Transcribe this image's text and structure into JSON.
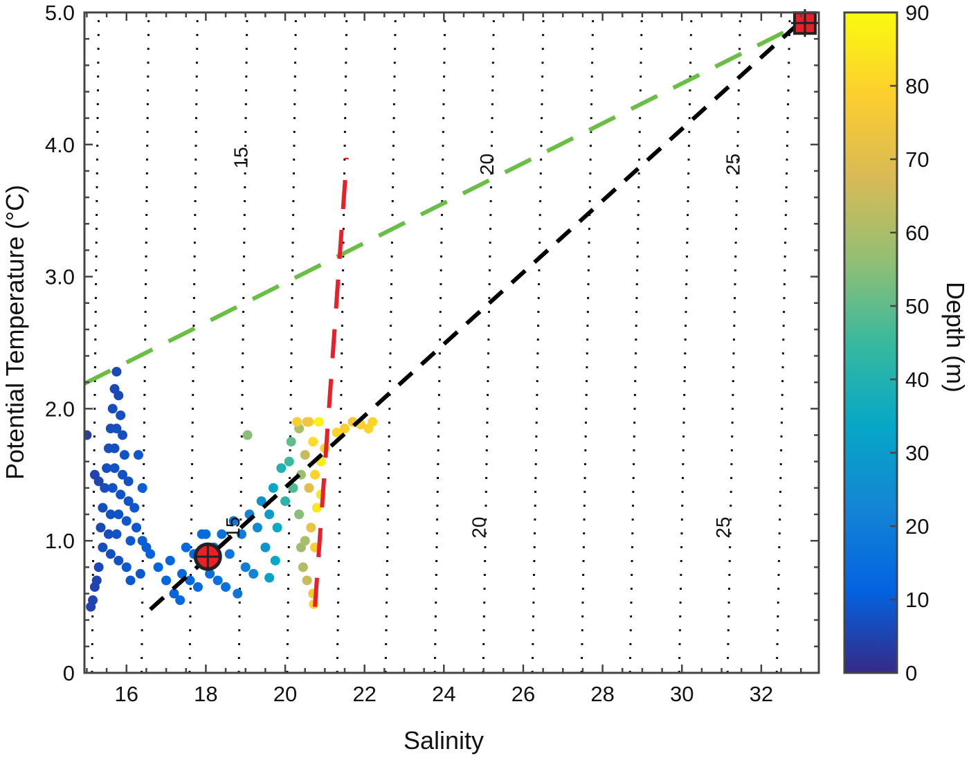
{
  "chart_data": {
    "type": "scatter",
    "xlabel": "Salinity",
    "ylabel": "Potential Temperature (°C)",
    "xlim": [
      14.94,
      33.45
    ],
    "ylim": [
      0,
      5
    ],
    "x_ticks": [
      16,
      18,
      20,
      22,
      24,
      26,
      28,
      30,
      32
    ],
    "y_ticks": [
      {
        "v": 0,
        "label": "0"
      },
      {
        "v": 1,
        "label": "1.0"
      },
      {
        "v": 2,
        "label": "2.0"
      },
      {
        "v": 3,
        "label": "3.0"
      },
      {
        "v": 4,
        "label": "4.0"
      },
      {
        "v": 5,
        "label": "5.0"
      }
    ],
    "colorbar": {
      "label": "Depth (m)",
      "range": [
        0,
        90
      ],
      "ticks": [
        0,
        10,
        20,
        30,
        40,
        50,
        60,
        70,
        80,
        90
      ],
      "colormap": [
        "#352A87",
        "#0363E1",
        "#1485D4",
        "#06A7C6",
        "#38B99E",
        "#92BF73",
        "#D9BA56",
        "#FCCE2E",
        "#F9FB0E"
      ]
    },
    "density_contours": [
      {
        "s_bottom": 15.13,
        "s_top": 15.3
      },
      {
        "s_bottom": 16.38,
        "s_top": 16.56
      },
      {
        "s_bottom": 17.59,
        "s_top": 17.79
      },
      {
        "s_bottom": 18.83,
        "s_top": 19.04
      },
      {
        "s_bottom": 20.05,
        "s_top": 20.27
      },
      {
        "s_bottom": 21.31,
        "s_top": 21.55
      },
      {
        "s_bottom": 22.53,
        "s_top": 22.78
      },
      {
        "s_bottom": 23.77,
        "s_top": 24.03
      },
      {
        "s_bottom": 24.99,
        "s_top": 25.26
      },
      {
        "s_bottom": 26.23,
        "s_top": 26.51
      },
      {
        "s_bottom": 27.47,
        "s_top": 27.76
      },
      {
        "s_bottom": 28.69,
        "s_top": 28.99
      },
      {
        "s_bottom": 29.93,
        "s_top": 30.24
      },
      {
        "s_bottom": 31.15,
        "s_top": 31.47
      },
      {
        "s_bottom": 32.39,
        "s_top": 32.72
      }
    ],
    "contour_labels": [
      {
        "text": "15",
        "s": 19.05,
        "t": 3.9
      },
      {
        "text": "20",
        "s": 25.25,
        "t": 3.85
      },
      {
        "text": "25",
        "s": 31.45,
        "t": 3.85
      },
      {
        "text": "15",
        "s": 18.85,
        "t": 1.1
      },
      {
        "text": "20",
        "s": 25.05,
        "t": 1.1
      },
      {
        "text": "25",
        "s": 31.2,
        "t": 1.1
      }
    ],
    "lines": [
      {
        "color": "#6ABD45",
        "dash": "42 26",
        "points": [
          [
            14.94,
            2.19
          ],
          [
            33.1,
            4.93
          ]
        ]
      },
      {
        "color": "#000000",
        "dash": "26 18",
        "points": [
          [
            16.6,
            0.48
          ],
          [
            33.25,
            5.0
          ]
        ]
      },
      {
        "color": "#E8202A",
        "dash": "42 30",
        "points": [
          [
            20.75,
            0.5
          ],
          [
            21.55,
            3.9
          ]
        ]
      }
    ],
    "markers": [
      {
        "shape": "circle-cross",
        "s": 18.05,
        "t": 0.88,
        "color": "#E8202A"
      },
      {
        "shape": "square-cross",
        "s": 33.1,
        "t": 4.92,
        "color": "#E8202A"
      }
    ],
    "points_columns": [
      "salinity",
      "potential_temperature",
      "depth"
    ],
    "points": [
      [
        15.75,
        2.28,
        6
      ],
      [
        15.7,
        2.15,
        6
      ],
      [
        15.8,
        2.1,
        6
      ],
      [
        15.65,
        2.0,
        7
      ],
      [
        15.85,
        1.95,
        7
      ],
      [
        15.6,
        1.85,
        7
      ],
      [
        15.75,
        1.85,
        7
      ],
      [
        15.9,
        1.8,
        7
      ],
      [
        15.55,
        1.7,
        7
      ],
      [
        15.7,
        1.7,
        7
      ],
      [
        15.95,
        1.65,
        8
      ],
      [
        15.5,
        1.55,
        7
      ],
      [
        15.7,
        1.55,
        8
      ],
      [
        15.9,
        1.5,
        8
      ],
      [
        16.05,
        1.45,
        8
      ],
      [
        15.45,
        1.4,
        7
      ],
      [
        15.65,
        1.4,
        8
      ],
      [
        15.85,
        1.35,
        8
      ],
      [
        16.05,
        1.3,
        8
      ],
      [
        16.2,
        1.25,
        9
      ],
      [
        15.4,
        1.25,
        7
      ],
      [
        15.6,
        1.2,
        8
      ],
      [
        15.8,
        1.2,
        8
      ],
      [
        16.0,
        1.15,
        9
      ],
      [
        16.25,
        1.1,
        9
      ],
      [
        15.35,
        1.1,
        6
      ],
      [
        15.55,
        1.05,
        7
      ],
      [
        15.75,
        1.05,
        8
      ],
      [
        16.4,
        1.0,
        10
      ],
      [
        16.1,
        1.0,
        9
      ],
      [
        15.4,
        0.95,
        7
      ],
      [
        15.6,
        0.9,
        7
      ],
      [
        15.8,
        0.85,
        8
      ],
      [
        16.5,
        0.95,
        10
      ],
      [
        16.0,
        0.8,
        9
      ],
      [
        15.3,
        0.8,
        6
      ],
      [
        15.2,
        0.65,
        5
      ],
      [
        15.15,
        0.55,
        5
      ],
      [
        15.1,
        0.5,
        5
      ],
      [
        15.25,
        0.7,
        5
      ],
      [
        15.0,
        1.8,
        4
      ],
      [
        15.2,
        1.5,
        5
      ],
      [
        15.3,
        1.45,
        5
      ],
      [
        16.3,
        1.65,
        9
      ],
      [
        16.4,
        1.4,
        10
      ],
      [
        16.35,
        0.75,
        9
      ],
      [
        16.1,
        0.7,
        9
      ],
      [
        16.6,
        0.9,
        11
      ],
      [
        16.8,
        0.8,
        12
      ],
      [
        17.0,
        0.7,
        12
      ],
      [
        17.2,
        0.6,
        12
      ],
      [
        17.35,
        0.55,
        13
      ],
      [
        17.1,
        0.85,
        12
      ],
      [
        17.4,
        0.75,
        13
      ],
      [
        17.6,
        0.7,
        13
      ],
      [
        17.8,
        0.65,
        14
      ],
      [
        17.5,
        0.95,
        13
      ],
      [
        17.7,
        0.9,
        13
      ],
      [
        17.9,
        0.85,
        14
      ],
      [
        18.1,
        0.75,
        15
      ],
      [
        18.3,
        0.7,
        16
      ],
      [
        18.2,
        0.95,
        15
      ],
      [
        17.9,
        1.05,
        14
      ],
      [
        18.4,
        1.05,
        16
      ],
      [
        18.6,
        0.9,
        17
      ],
      [
        18.5,
        0.65,
        16
      ],
      [
        18.8,
        0.6,
        17
      ],
      [
        18.0,
        1.05,
        14
      ],
      [
        18.7,
        1.15,
        18
      ],
      [
        18.9,
        1.05,
        19
      ],
      [
        19.0,
        0.8,
        20
      ],
      [
        19.2,
        0.75,
        22
      ],
      [
        19.1,
        1.2,
        22
      ],
      [
        19.3,
        1.1,
        24
      ],
      [
        19.4,
        1.3,
        27
      ],
      [
        19.6,
        1.2,
        30
      ],
      [
        19.5,
        0.95,
        28
      ],
      [
        19.7,
        1.4,
        33
      ],
      [
        19.8,
        1.1,
        35
      ],
      [
        19.9,
        1.55,
        40
      ],
      [
        20.0,
        1.3,
        42
      ],
      [
        19.6,
        0.72,
        32
      ],
      [
        19.75,
        0.85,
        34
      ],
      [
        20.1,
        1.6,
        45
      ],
      [
        20.2,
        1.4,
        48
      ],
      [
        20.15,
        1.75,
        50
      ],
      [
        19.05,
        1.8,
        55
      ],
      [
        20.35,
        1.85,
        60
      ],
      [
        20.4,
        1.5,
        58
      ],
      [
        20.35,
        1.2,
        55
      ],
      [
        20.4,
        0.95,
        58
      ],
      [
        20.45,
        0.8,
        62
      ],
      [
        20.5,
        1.0,
        60
      ],
      [
        20.55,
        0.7,
        65
      ],
      [
        20.5,
        1.65,
        65
      ],
      [
        20.6,
        1.9,
        78
      ],
      [
        20.6,
        1.4,
        70
      ],
      [
        20.65,
        1.1,
        72
      ],
      [
        20.7,
        1.75,
        82
      ],
      [
        20.75,
        1.5,
        80
      ],
      [
        20.8,
        1.25,
        85
      ],
      [
        20.85,
        1.9,
        88
      ],
      [
        20.9,
        1.6,
        86
      ],
      [
        20.75,
        0.95,
        78
      ],
      [
        20.7,
        0.6,
        76
      ],
      [
        20.72,
        0.52,
        80
      ],
      [
        20.9,
        1.35,
        85
      ],
      [
        20.55,
        1.9,
        75
      ],
      [
        20.3,
        1.9,
        78
      ],
      [
        21.3,
        1.82,
        80
      ],
      [
        21.5,
        1.85,
        78
      ],
      [
        21.7,
        1.9,
        76
      ],
      [
        21.9,
        1.88,
        78
      ],
      [
        22.1,
        1.85,
        80
      ],
      [
        22.2,
        1.9,
        80
      ],
      [
        21.0,
        1.7,
        80
      ]
    ]
  }
}
